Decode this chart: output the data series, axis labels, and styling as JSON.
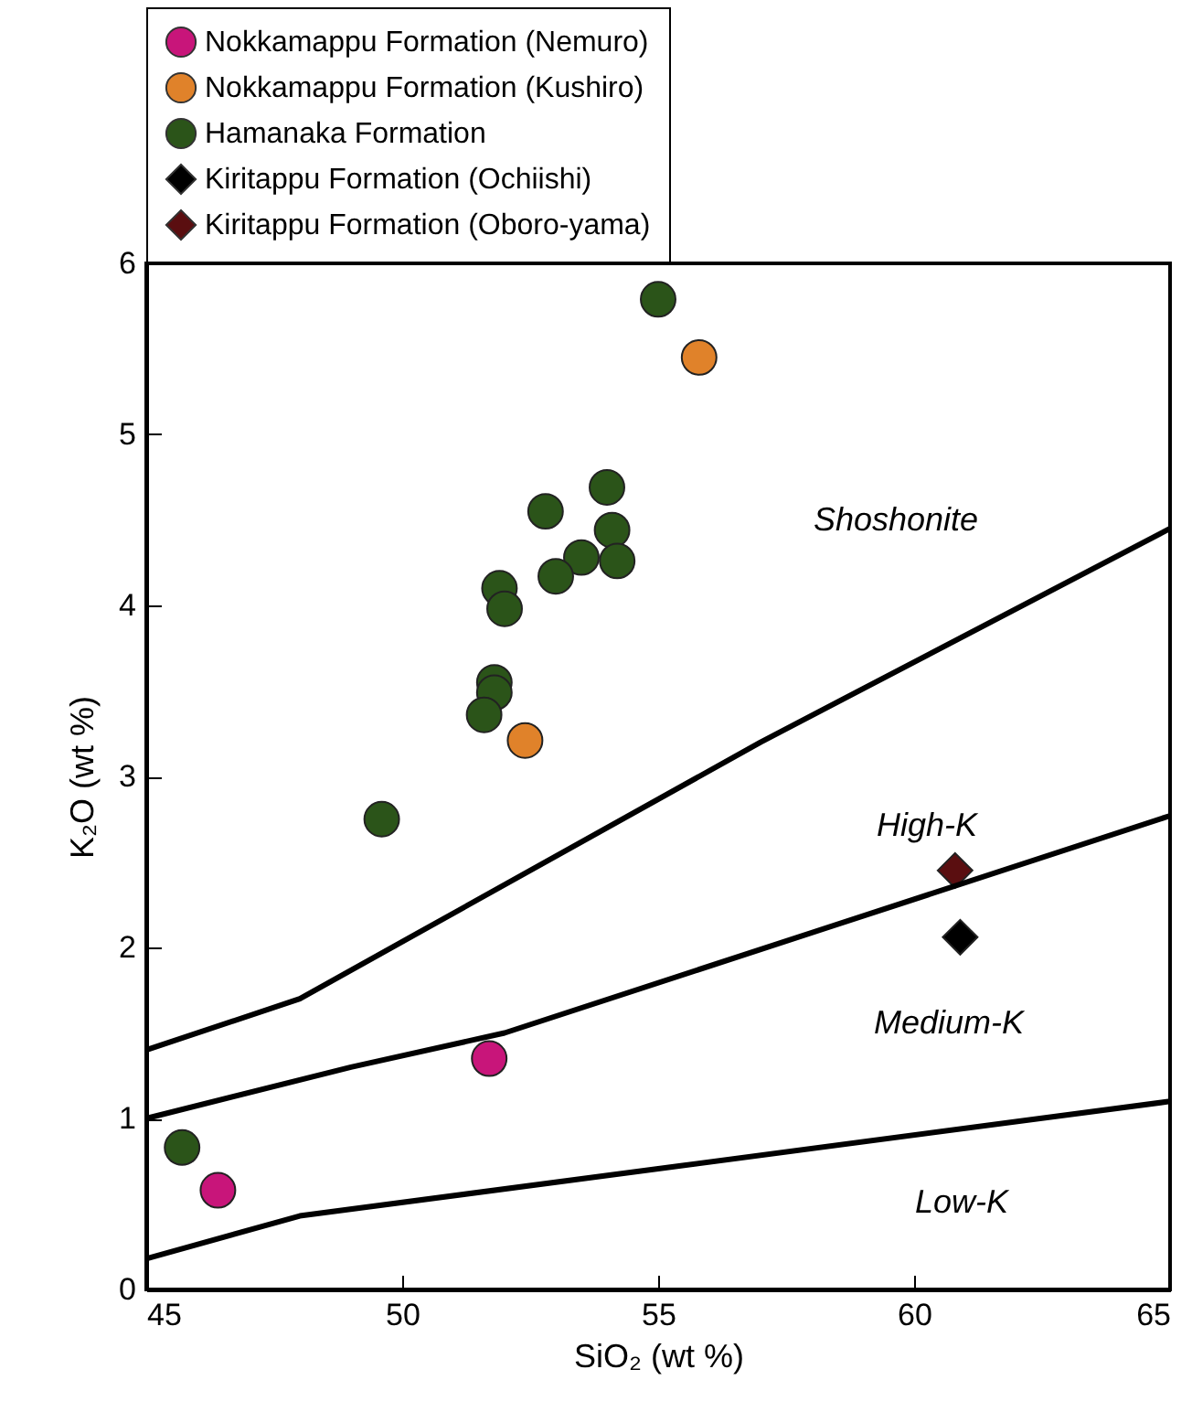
{
  "chart_data": {
    "type": "scatter",
    "xlabel": "SiO₂ (wt %)",
    "ylabel": "K₂O (wt %)",
    "xlim": [
      45,
      65
    ],
    "ylim": [
      0,
      6
    ],
    "xticks": [
      45,
      50,
      55,
      60,
      65
    ],
    "yticks": [
      0,
      1,
      2,
      3,
      4,
      5,
      6
    ],
    "legend": "top left",
    "grid": false,
    "series": [
      {
        "name": "Nokkamappu Formation (Nemuro)",
        "color": "#c8157a",
        "marker": "circle",
        "x": [
          46.4,
          51.7
        ],
        "values": [
          0.58,
          1.35
        ]
      },
      {
        "name": "Nokkamappu Formation (Kushiro)",
        "color": "#e0822a",
        "marker": "circle",
        "x": [
          52.4,
          55.8
        ],
        "values": [
          3.21,
          5.45
        ]
      },
      {
        "name": "Hamanaka Formation",
        "color": "#2b5419",
        "marker": "circle",
        "x": [
          55.0,
          54.0,
          54.1,
          54.2,
          53.5,
          53.0,
          52.8,
          51.9,
          52.0,
          51.8,
          51.8,
          51.6,
          49.6,
          45.7
        ],
        "values": [
          5.79,
          4.69,
          4.44,
          4.26,
          4.28,
          4.17,
          4.55,
          4.1,
          3.98,
          3.55,
          3.49,
          3.36,
          2.75,
          0.83
        ]
      },
      {
        "name": "Kiritappu Formation (Ochiishi)",
        "color": "#000000",
        "marker": "diamond",
        "x": [
          60.9
        ],
        "values": [
          2.06
        ]
      },
      {
        "name": "Kiritappu Formation (Oboro-yama)",
        "color": "#5a0e10",
        "marker": "diamond",
        "x": [
          60.8
        ],
        "values": [
          2.45
        ]
      },
      {
        "type": "line",
        "color": "#000000",
        "marker": "none",
        "x": [
          45,
          48,
          65
        ],
        "values": [
          0.18,
          0.43,
          1.1
        ]
      },
      {
        "type": "line",
        "color": "#000000",
        "marker": "none",
        "x": [
          45,
          49,
          52,
          65
        ],
        "values": [
          1.0,
          1.3,
          1.5,
          2.77
        ]
      },
      {
        "type": "line",
        "color": "#000000",
        "marker": "none",
        "x": [
          45,
          48,
          57,
          65
        ],
        "values": [
          1.4,
          1.7,
          3.2,
          4.45
        ]
      }
    ],
    "annotations": [
      "Shoshonite",
      "High-K",
      "Medium-K",
      "Low-K"
    ]
  }
}
